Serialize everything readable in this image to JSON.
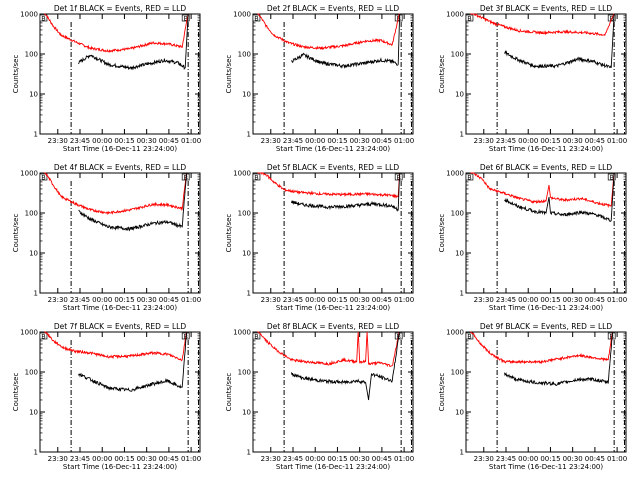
{
  "chart_data": {
    "type": "line",
    "common": {
      "title_prefix": "BLACK = Events, RED = LLD",
      "xlabel": "Start Time (16-Dec-11 23:24:00)",
      "ylabel": "Counts/sec",
      "x_ticks": [
        "23:30",
        "23:45",
        "00:00",
        "00:15",
        "00:30",
        "00:45",
        "01:00"
      ],
      "x_range_minutes": [
        -6,
        102
      ],
      "y_scale": "log",
      "y_range": [
        1,
        1000
      ],
      "y_ticks": [
        "1",
        "10",
        "100",
        "1000"
      ],
      "colors": {
        "events": "#000000",
        "lld": "#ff0000"
      },
      "marker_label": "B"
    },
    "panels": [
      {
        "det": "Det 1f",
        "title": "Det 1f BLACK = Events, RED = LLD",
        "black": [
          [
            20,
            60
          ],
          [
            28,
            95
          ],
          [
            40,
            55
          ],
          [
            55,
            45
          ],
          [
            70,
            60
          ],
          [
            78,
            70
          ],
          [
            87,
            60
          ],
          [
            92,
            45
          ],
          [
            94,
            1100
          ]
        ],
        "red": [
          [
            -3,
            1100
          ],
          [
            3,
            500
          ],
          [
            8,
            300
          ],
          [
            18,
            200
          ],
          [
            28,
            140
          ],
          [
            40,
            120
          ],
          [
            55,
            135
          ],
          [
            70,
            190
          ],
          [
            80,
            180
          ],
          [
            90,
            150
          ],
          [
            94,
            1100
          ]
        ]
      },
      {
        "det": "Det 2f",
        "title": "Det 2f BLACK = Events, RED = LLD",
        "black": [
          [
            20,
            65
          ],
          [
            28,
            95
          ],
          [
            40,
            60
          ],
          [
            55,
            50
          ],
          [
            70,
            60
          ],
          [
            80,
            70
          ],
          [
            88,
            65
          ],
          [
            92,
            55
          ],
          [
            93,
            1100
          ]
        ],
        "red": [
          [
            -3,
            1100
          ],
          [
            3,
            500
          ],
          [
            8,
            300
          ],
          [
            18,
            190
          ],
          [
            28,
            150
          ],
          [
            40,
            140
          ],
          [
            55,
            160
          ],
          [
            70,
            210
          ],
          [
            80,
            220
          ],
          [
            88,
            170
          ],
          [
            93,
            1100
          ]
        ]
      },
      {
        "det": "Det 3f",
        "title": "Det 3f BLACK = Events, RED = LLD",
        "black": [
          [
            20,
            110
          ],
          [
            28,
            75
          ],
          [
            40,
            50
          ],
          [
            55,
            50
          ],
          [
            70,
            75
          ],
          [
            80,
            65
          ],
          [
            92,
            45
          ],
          [
            94,
            1100
          ]
        ],
        "red": [
          [
            -3,
            1100
          ],
          [
            5,
            800
          ],
          [
            12,
            600
          ],
          [
            20,
            480
          ],
          [
            30,
            380
          ],
          [
            45,
            340
          ],
          [
            60,
            360
          ],
          [
            75,
            340
          ],
          [
            88,
            300
          ],
          [
            94,
            1100
          ]
        ]
      },
      {
        "det": "Det 4f",
        "title": "Det 4f BLACK = Events, RED = LLD",
        "black": [
          [
            20,
            110
          ],
          [
            28,
            70
          ],
          [
            40,
            45
          ],
          [
            55,
            40
          ],
          [
            70,
            55
          ],
          [
            80,
            60
          ],
          [
            90,
            45
          ],
          [
            93,
            1100
          ]
        ],
        "red": [
          [
            -3,
            1100
          ],
          [
            3,
            500
          ],
          [
            8,
            260
          ],
          [
            18,
            170
          ],
          [
            28,
            120
          ],
          [
            40,
            100
          ],
          [
            55,
            120
          ],
          [
            70,
            165
          ],
          [
            80,
            160
          ],
          [
            90,
            130
          ],
          [
            93,
            1100
          ]
        ]
      },
      {
        "det": "Det 5f",
        "title": "Det 5f BLACK = Events, RED = LLD",
        "black": [
          [
            20,
            190
          ],
          [
            28,
            160
          ],
          [
            45,
            140
          ],
          [
            60,
            150
          ],
          [
            75,
            170
          ],
          [
            88,
            150
          ],
          [
            92,
            120
          ],
          [
            93,
            1100
          ]
        ],
        "red": [
          [
            -3,
            1100
          ],
          [
            3,
            900
          ],
          [
            8,
            600
          ],
          [
            15,
            380
          ],
          [
            25,
            330
          ],
          [
            40,
            300
          ],
          [
            55,
            290
          ],
          [
            70,
            300
          ],
          [
            85,
            280
          ],
          [
            92,
            260
          ],
          [
            93,
            1100
          ]
        ]
      },
      {
        "det": "Det 6f",
        "title": "Det 6f BLACK = Events, RED = LLD",
        "black": [
          [
            20,
            220
          ],
          [
            28,
            150
          ],
          [
            40,
            110
          ],
          [
            48,
            100
          ],
          [
            50,
            250
          ],
          [
            51,
            100
          ],
          [
            60,
            90
          ],
          [
            72,
            105
          ],
          [
            82,
            90
          ],
          [
            92,
            65
          ],
          [
            94,
            1100
          ]
        ],
        "red": [
          [
            -3,
            1100
          ],
          [
            5,
            700
          ],
          [
            10,
            400
          ],
          [
            20,
            310
          ],
          [
            30,
            230
          ],
          [
            40,
            190
          ],
          [
            48,
            200
          ],
          [
            50,
            500
          ],
          [
            51,
            240
          ],
          [
            60,
            210
          ],
          [
            72,
            230
          ],
          [
            82,
            180
          ],
          [
            92,
            150
          ],
          [
            94,
            1100
          ]
        ]
      },
      {
        "det": "Det 7f",
        "title": "Det 7f BLACK = Events, RED = LLD",
        "black": [
          [
            20,
            90
          ],
          [
            28,
            65
          ],
          [
            40,
            40
          ],
          [
            55,
            35
          ],
          [
            70,
            50
          ],
          [
            80,
            60
          ],
          [
            90,
            40
          ],
          [
            93,
            1100
          ]
        ],
        "red": [
          [
            -3,
            1100
          ],
          [
            3,
            600
          ],
          [
            10,
            400
          ],
          [
            18,
            330
          ],
          [
            28,
            300
          ],
          [
            40,
            240
          ],
          [
            55,
            250
          ],
          [
            70,
            300
          ],
          [
            80,
            280
          ],
          [
            90,
            200
          ],
          [
            93,
            1100
          ]
        ]
      },
      {
        "det": "Det 8f",
        "title": "Det 8f BLACK = Events, RED = LLD",
        "black": [
          [
            20,
            90
          ],
          [
            28,
            70
          ],
          [
            40,
            60
          ],
          [
            55,
            55
          ],
          [
            64,
            60
          ],
          [
            70,
            55
          ],
          [
            72,
            20
          ],
          [
            74,
            90
          ],
          [
            80,
            75
          ],
          [
            88,
            60
          ],
          [
            93,
            1100
          ]
        ],
        "red": [
          [
            -3,
            1100
          ],
          [
            3,
            600
          ],
          [
            10,
            350
          ],
          [
            20,
            200
          ],
          [
            30,
            180
          ],
          [
            45,
            160
          ],
          [
            55,
            200
          ],
          [
            64,
            180
          ],
          [
            65,
            1100
          ],
          [
            66,
            180
          ],
          [
            70,
            180
          ],
          [
            71,
            1100
          ],
          [
            72,
            160
          ],
          [
            80,
            170
          ],
          [
            88,
            140
          ],
          [
            93,
            1100
          ]
        ]
      },
      {
        "det": "Det 9f",
        "title": "Det 9f BLACK = Events, RED = LLD",
        "black": [
          [
            20,
            90
          ],
          [
            28,
            65
          ],
          [
            40,
            55
          ],
          [
            55,
            50
          ],
          [
            70,
            65
          ],
          [
            80,
            65
          ],
          [
            90,
            55
          ],
          [
            93,
            1100
          ]
        ],
        "red": [
          [
            -3,
            1100
          ],
          [
            3,
            550
          ],
          [
            10,
            300
          ],
          [
            20,
            180
          ],
          [
            30,
            180
          ],
          [
            45,
            180
          ],
          [
            55,
            210
          ],
          [
            70,
            260
          ],
          [
            80,
            230
          ],
          [
            90,
            200
          ],
          [
            93,
            1100
          ]
        ]
      }
    ]
  }
}
